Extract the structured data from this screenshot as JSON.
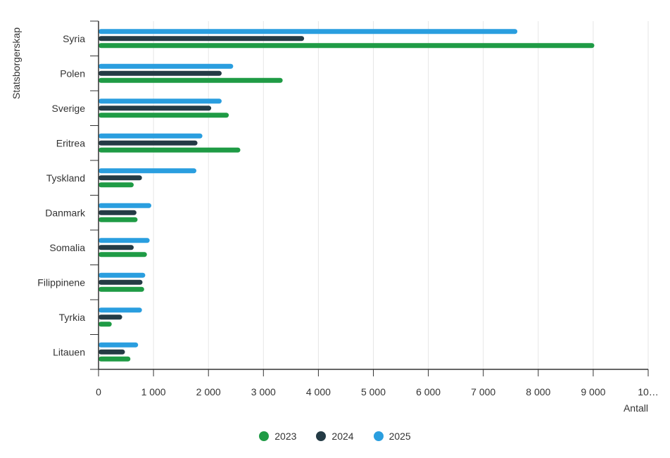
{
  "chart_data": {
    "type": "bar",
    "orientation": "horizontal",
    "ylabel": "Statsborgerskap",
    "xlabel": "Antall",
    "categories": [
      "Syria",
      "Polen",
      "Sverige",
      "Eritrea",
      "Tyskland",
      "Danmark",
      "Somalia",
      "Filippinene",
      "Tyrkia",
      "Litauen"
    ],
    "x_ticks": [
      "0",
      "1 000",
      "2 000",
      "3 000",
      "4 000",
      "5 000",
      "6 000",
      "7 000",
      "8 000",
      "9 000",
      "10…"
    ],
    "xlim": [
      0,
      10000
    ],
    "grid": true,
    "legend_position": "bottom",
    "series": [
      {
        "name": "2023",
        "color": "#1f9b45",
        "values": [
          9020,
          3350,
          2370,
          2580,
          640,
          710,
          880,
          830,
          240,
          580
        ]
      },
      {
        "name": "2024",
        "color": "#243b45",
        "values": [
          3740,
          2240,
          2050,
          1800,
          790,
          690,
          640,
          800,
          430,
          480
        ]
      },
      {
        "name": "2025",
        "color": "#2a9edf",
        "values": [
          7620,
          2450,
          2240,
          1890,
          1780,
          960,
          930,
          850,
          790,
          720
        ]
      }
    ]
  }
}
